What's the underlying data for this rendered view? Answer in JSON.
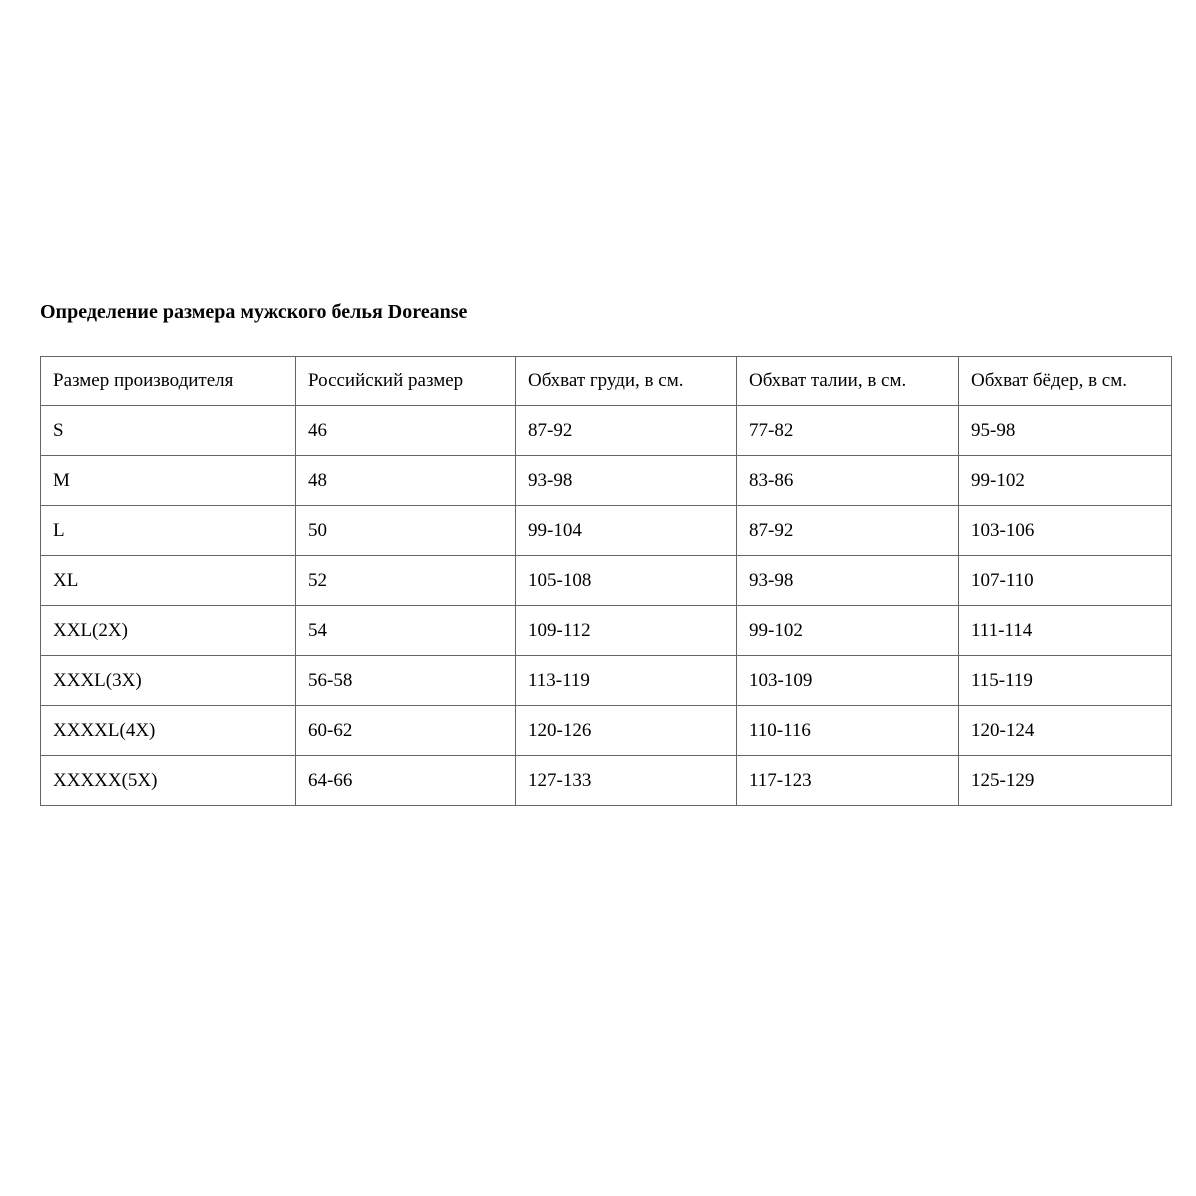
{
  "page": {
    "title": "Определение размера мужского белья Doreanse"
  },
  "table": {
    "headers": [
      "Размер производителя",
      "Российский размер",
      "Обхват груди, в см.",
      "Обхват талии, в см.",
      "Обхват бёдер, в см."
    ],
    "rows": [
      [
        "S",
        "46",
        "87-92",
        "77-82",
        "95-98"
      ],
      [
        "M",
        "48",
        "93-98",
        "83-86",
        "99-102"
      ],
      [
        "L",
        "50",
        "99-104",
        "87-92",
        "103-106"
      ],
      [
        "XL",
        "52",
        "105-108",
        "93-98",
        "107-110"
      ],
      [
        "XXL(2X)",
        "54",
        "109-112",
        "99-102",
        "111-114"
      ],
      [
        "XXXL(3X)",
        "56-58",
        "113-119",
        "103-109",
        "115-119"
      ],
      [
        "XXXXL(4X)",
        "60-62",
        "120-126",
        "110-116",
        "120-124"
      ],
      [
        "XXXXX(5X)",
        "64-66",
        "127-133",
        "117-123",
        "125-129"
      ]
    ]
  }
}
